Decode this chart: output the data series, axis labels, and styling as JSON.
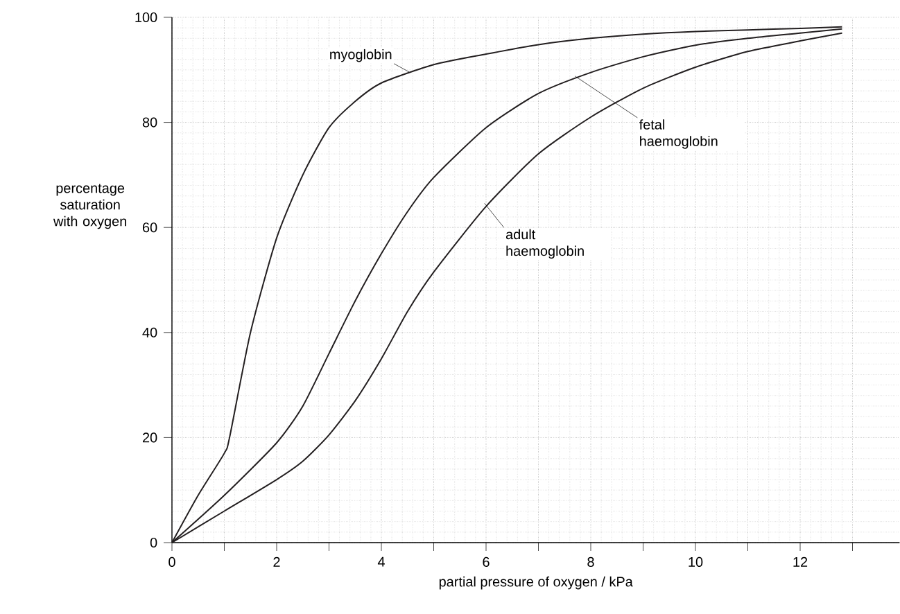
{
  "chart_data": {
    "type": "line",
    "xlabel": "partial pressure of oxygen / kPa",
    "ylabel": "percentage saturation with oxygen",
    "xlim": [
      0,
      13.9
    ],
    "ylim": [
      0,
      100
    ],
    "xticks": [
      0,
      {
        "value": 1,
        "label": null
      },
      2,
      {
        "value": 3,
        "label": null
      },
      4,
      {
        "value": 5,
        "label": null
      },
      6,
      {
        "value": 7,
        "label": null
      },
      8,
      {
        "value": 9,
        "label": null
      },
      10,
      {
        "value": 11,
        "label": null
      },
      12,
      {
        "value": 13,
        "label": null
      }
    ],
    "yticks": [
      0,
      20,
      40,
      60,
      80,
      100
    ],
    "grid": true,
    "line_style": "solid",
    "series": [
      {
        "color": "#231f20",
        "x": [
          0,
          0.5,
          1,
          1.1,
          1.5,
          2,
          2.5,
          3,
          3.5,
          4,
          5,
          6,
          7,
          8,
          9,
          10,
          11,
          12,
          12.8
        ],
        "values": [
          0,
          9,
          17,
          20,
          40,
          58,
          70,
          79,
          84,
          87.5,
          91,
          93,
          94.8,
          96,
          96.8,
          97.3,
          97.6,
          97.9,
          98.2
        ]
      },
      {
        "color": "#231f20",
        "x": [
          0,
          1,
          2,
          2.5,
          3,
          3.5,
          4,
          4.5,
          5,
          6,
          7,
          8,
          9,
          10,
          11,
          12,
          12.8
        ],
        "values": [
          0,
          9,
          19,
          26,
          36,
          46,
          55,
          63,
          69.5,
          79,
          85.5,
          89.5,
          92.5,
          94.7,
          96,
          97,
          97.8
        ]
      },
      {
        "color": "#231f20",
        "x": [
          0,
          1,
          2,
          2.5,
          3,
          3.5,
          4,
          4.5,
          5,
          6,
          7,
          8,
          9,
          10,
          11,
          12,
          12.8
        ],
        "values": [
          0,
          6,
          12,
          15.5,
          20.5,
          27,
          35,
          44,
          51.5,
          64,
          74,
          81,
          86.5,
          90.5,
          93.5,
          95.5,
          97
        ]
      }
    ],
    "annotations": [
      {
        "text": "myoglobin",
        "x": 4.53,
        "y": 89.6
      },
      {
        "text": "fetal haemoglobin",
        "x": 7.7,
        "y": 88.8
      },
      {
        "text": "adult haemoglobin",
        "x": 5.97,
        "y": 64.6
      }
    ]
  }
}
